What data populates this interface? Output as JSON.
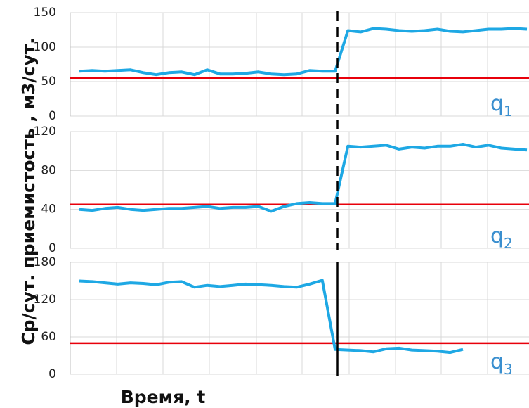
{
  "axis_labels": {
    "y": "Ср/сут. приемистость , м3/сут.",
    "x": "Время, t"
  },
  "chart_data": [
    {
      "type": "line",
      "label": "q",
      "label_sub": "1",
      "color": "#1ea8e4",
      "threshold": 55,
      "threshold_color": "#e8000b",
      "categories": [
        null,
        null,
        null,
        null,
        null,
        null,
        null,
        null,
        null,
        null,
        null,
        null,
        null,
        null,
        null,
        null,
        null,
        null,
        null,
        null,
        null,
        null,
        null,
        null,
        null,
        null,
        null,
        null,
        null,
        null,
        null,
        null,
        null,
        null,
        null,
        null
      ],
      "values": [
        65,
        66,
        65,
        66,
        67,
        63,
        60,
        63,
        64,
        60,
        67,
        61,
        61,
        62,
        64,
        61,
        60,
        61,
        66,
        65,
        65,
        124,
        122,
        127,
        126,
        124,
        123,
        124,
        126,
        123,
        122,
        124,
        126,
        126,
        127,
        126
      ],
      "ylim": [
        0,
        150
      ],
      "yticks": [
        0,
        50,
        100,
        150
      ],
      "grid": true
    },
    {
      "type": "line",
      "label": "q",
      "label_sub": "2",
      "color": "#1ea8e4",
      "threshold": 45,
      "threshold_color": "#e8000b",
      "categories": [
        null,
        null,
        null,
        null,
        null,
        null,
        null,
        null,
        null,
        null,
        null,
        null,
        null,
        null,
        null,
        null,
        null,
        null,
        null,
        null,
        null,
        null,
        null,
        null,
        null,
        null,
        null,
        null,
        null,
        null,
        null,
        null,
        null,
        null,
        null,
        null
      ],
      "values": [
        40,
        39,
        41,
        42,
        40,
        39,
        40,
        41,
        41,
        42,
        43,
        41,
        42,
        42,
        43,
        38,
        43,
        46,
        47,
        46,
        46,
        105,
        104,
        105,
        106,
        102,
        104,
        103,
        105,
        105,
        107,
        104,
        106,
        103,
        102,
        101
      ],
      "ylim": [
        0,
        120
      ],
      "yticks": [
        0,
        40,
        80,
        120
      ],
      "grid": true
    },
    {
      "type": "line",
      "label": "q",
      "label_sub": "3",
      "color": "#1ea8e4",
      "threshold": 50,
      "threshold_color": "#e8000b",
      "categories": [
        null,
        null,
        null,
        null,
        null,
        null,
        null,
        null,
        null,
        null,
        null,
        null,
        null,
        null,
        null,
        null,
        null,
        null,
        null,
        null,
        null,
        null,
        null,
        null,
        null,
        null,
        null,
        null,
        null,
        null,
        null,
        null,
        null,
        null,
        null,
        null
      ],
      "values": [
        150,
        149,
        147,
        145,
        147,
        146,
        144,
        148,
        149,
        140,
        143,
        141,
        143,
        145,
        144,
        143,
        141,
        140,
        145,
        151,
        40,
        39,
        38,
        36,
        41,
        42,
        39,
        38,
        37,
        35,
        40,
        null,
        null,
        null,
        null,
        null
      ],
      "ylim": [
        0,
        180
      ],
      "yticks": [
        0,
        60,
        120,
        180
      ],
      "grid": true
    }
  ]
}
